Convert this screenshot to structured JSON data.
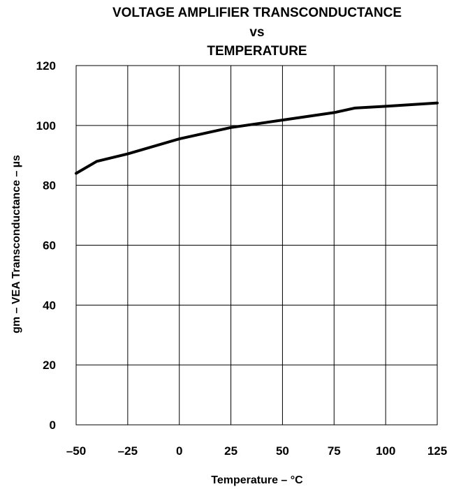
{
  "chart_data": {
    "type": "line",
    "title": [
      "VOLTAGE AMPLIFIER TRANSCONDUCTANCE",
      "vs",
      "TEMPERATURE"
    ],
    "xlabel": "Temperature – °C",
    "ylabel": "gm – VEA Transconductance – µs",
    "xlim": [
      -50,
      125
    ],
    "ylim": [
      0,
      120
    ],
    "xticks": [
      -50,
      -25,
      0,
      25,
      50,
      75,
      100,
      125
    ],
    "xtick_labels": [
      "–50",
      "–25",
      "0",
      "25",
      "50",
      "75",
      "100",
      "125"
    ],
    "yticks": [
      0,
      20,
      40,
      60,
      80,
      100,
      120
    ],
    "ytick_labels": [
      "0",
      "20",
      "40",
      "60",
      "80",
      "100",
      "120"
    ],
    "grid": true,
    "series": [
      {
        "x": [
          -50,
          -40,
          -25,
          0,
          25,
          50,
          75,
          85,
          100,
          125
        ],
        "y": [
          84,
          88,
          90.5,
          95.5,
          99.3,
          101.8,
          104.3,
          105.8,
          106.4,
          107.5
        ]
      }
    ]
  }
}
